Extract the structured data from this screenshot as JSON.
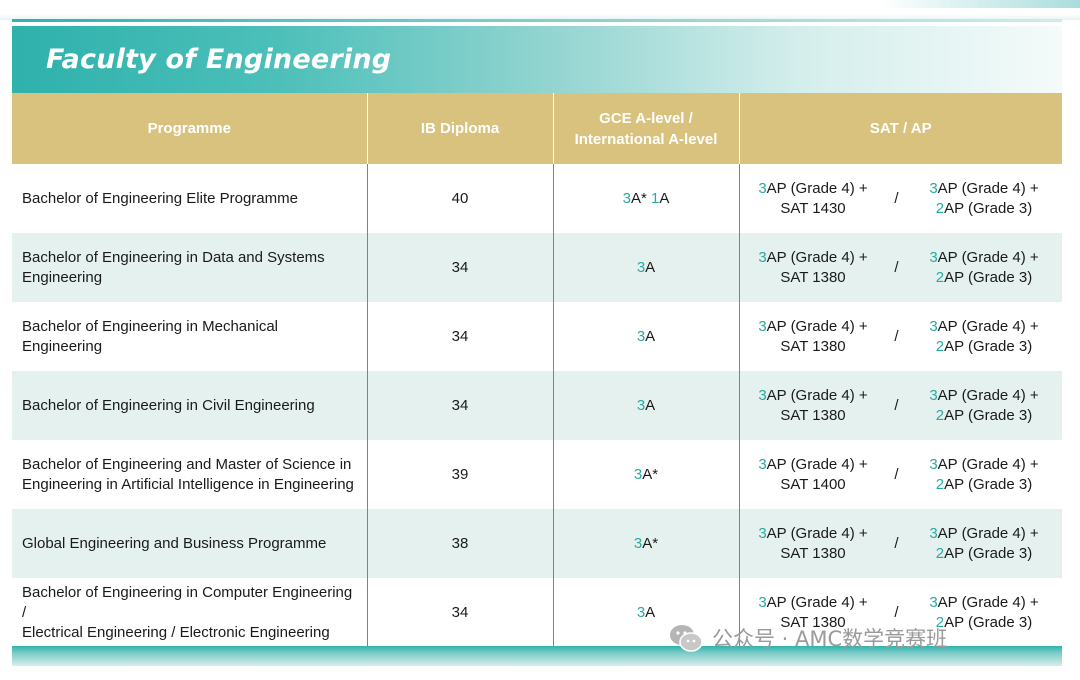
{
  "title": "Faculty of Engineering",
  "headers": {
    "programme": "Programme",
    "ib": "IB Diploma",
    "gce_line1": "GCE A-level /",
    "gce_line2": "International A-level",
    "sat": "SAT / AP"
  },
  "rows": [
    {
      "programme_line1": "Bachelor of Engineering Elite Programme",
      "programme_line2": "",
      "ib": "40",
      "gce": [
        {
          "n": "3",
          "t": "A* "
        },
        {
          "n": "1",
          "t": "A"
        }
      ],
      "sat_a": {
        "n": "3",
        "t1": "AP (Grade 4) +",
        "t2": "SAT 1430"
      },
      "sat_b": {
        "n1": "3",
        "t1": "AP (Grade 4) +",
        "n2": "2",
        "t2": "AP (Grade 3)"
      }
    },
    {
      "programme_line1": "Bachelor of Engineering in Data and Systems",
      "programme_line2": "Engineering",
      "ib": "34",
      "gce": [
        {
          "n": "3",
          "t": "A"
        }
      ],
      "sat_a": {
        "n": "3",
        "t1": "AP (Grade 4) +",
        "t2": "SAT 1380"
      },
      "sat_b": {
        "n1": "3",
        "t1": "AP (Grade 4) +",
        "n2": "2",
        "t2": "AP (Grade 3)"
      }
    },
    {
      "programme_line1": "Bachelor of Engineering in Mechanical Engineering",
      "programme_line2": "",
      "ib": "34",
      "gce": [
        {
          "n": "3",
          "t": "A"
        }
      ],
      "sat_a": {
        "n": "3",
        "t1": "AP (Grade 4) +",
        "t2": "SAT 1380"
      },
      "sat_b": {
        "n1": "3",
        "t1": "AP (Grade 4) +",
        "n2": "2",
        "t2": "AP (Grade 3)"
      }
    },
    {
      "programme_line1": "Bachelor of Engineering in Civil Engineering",
      "programme_line2": "",
      "ib": "34",
      "gce": [
        {
          "n": "3",
          "t": "A"
        }
      ],
      "sat_a": {
        "n": "3",
        "t1": "AP (Grade 4) +",
        "t2": "SAT 1380"
      },
      "sat_b": {
        "n1": "3",
        "t1": "AP (Grade 4) +",
        "n2": "2",
        "t2": "AP (Grade 3)"
      }
    },
    {
      "programme_line1": "Bachelor of Engineering and Master of Science in",
      "programme_line2": "Engineering in Artificial Intelligence in Engineering",
      "ib": "39",
      "gce": [
        {
          "n": "3",
          "t": "A*"
        }
      ],
      "sat_a": {
        "n": "3",
        "t1": "AP (Grade 4) +",
        "t2": "SAT 1400"
      },
      "sat_b": {
        "n1": "3",
        "t1": "AP (Grade 4) +",
        "n2": "2",
        "t2": "AP (Grade 3)"
      }
    },
    {
      "programme_line1": "Global Engineering and Business Programme",
      "programme_line2": "",
      "ib": "38",
      "gce": [
        {
          "n": "3",
          "t": "A*"
        }
      ],
      "sat_a": {
        "n": "3",
        "t1": "AP (Grade 4) +",
        "t2": "SAT 1380"
      },
      "sat_b": {
        "n1": "3",
        "t1": "AP (Grade 4) +",
        "n2": "2",
        "t2": "AP (Grade 3)"
      }
    },
    {
      "programme_line1": "Bachelor of Engineering in Computer Engineering /",
      "programme_line2": "Electrical Engineering / Electronic Engineering",
      "ib": "34",
      "gce": [
        {
          "n": "3",
          "t": "A"
        }
      ],
      "sat_a": {
        "n": "3",
        "t1": "AP (Grade 4) +",
        "t2": "SAT 1380"
      },
      "sat_b": {
        "n1": "3",
        "t1": "AP (Grade 4) +",
        "n2": "2",
        "t2": "AP (Grade 3)"
      }
    }
  ],
  "sat_separator": "/",
  "watermark": "公众号 · AMC数学竞赛班",
  "watermark_icon": "wechat-icon",
  "colors": {
    "accent": "#2aa9a3",
    "header": "#d8c27e",
    "alt_row": "#e4f1ef"
  }
}
